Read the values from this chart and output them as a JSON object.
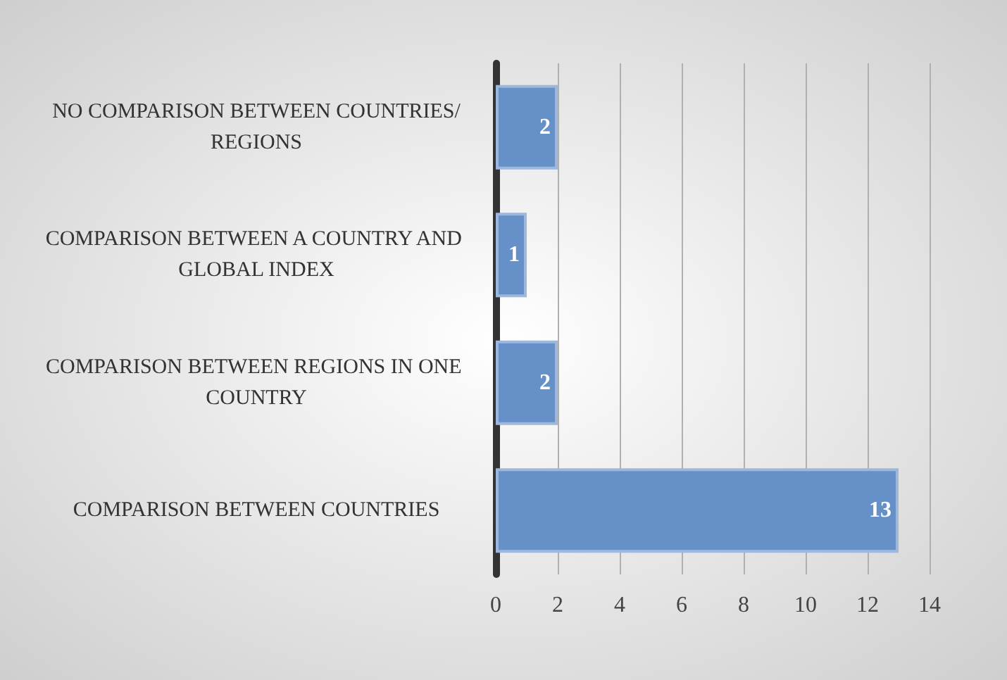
{
  "chart_data": {
    "type": "bar",
    "orientation": "horizontal",
    "categories": [
      "NO COMPARISON BETWEEN COUNTRIES/REGIONS",
      "COMPARISON BETWEEN A COUNTRY AND GLOBAL INDEX",
      "COMPARISON BETWEEN REGIONS IN ONE COUNTRY",
      "COMPARISON BETWEEN COUNTRIES"
    ],
    "values": [
      2,
      1,
      2,
      13
    ],
    "color": "#6690c8",
    "xlim": [
      0,
      14
    ],
    "xticks": [
      0,
      2,
      4,
      6,
      8,
      10,
      12,
      14
    ],
    "grid": "x",
    "data_labels": true
  }
}
